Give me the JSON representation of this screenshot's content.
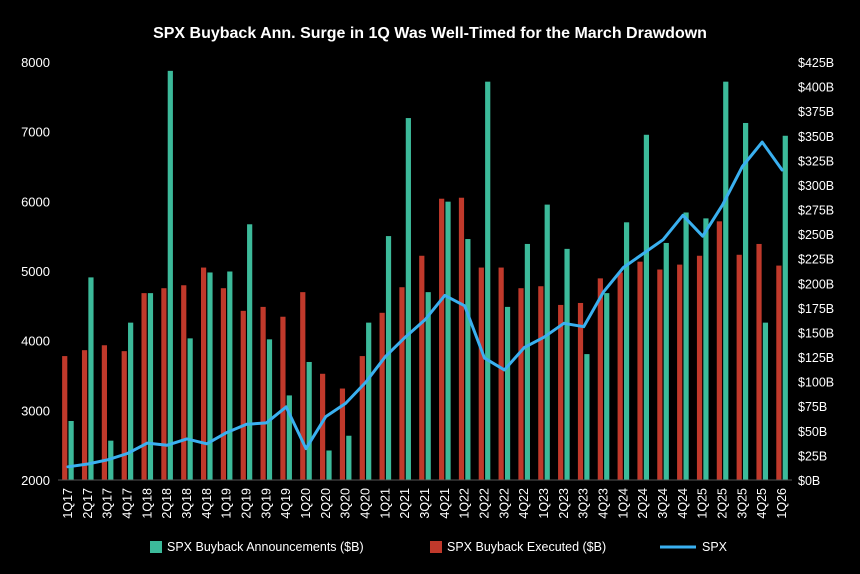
{
  "chart_data": {
    "type": "bar",
    "title": "SPX Buyback Ann. Surge in 1Q Was Well-Timed for the March Drawdown",
    "categories": [
      "1Q17",
      "2Q17",
      "3Q17",
      "4Q17",
      "1Q18",
      "2Q18",
      "3Q18",
      "4Q18",
      "1Q19",
      "2Q19",
      "3Q19",
      "4Q19",
      "1Q20",
      "2Q20",
      "3Q20",
      "4Q20",
      "1Q21",
      "2Q21",
      "3Q21",
      "4Q21",
      "1Q22",
      "2Q22",
      "3Q22",
      "4Q22",
      "1Q23",
      "2Q23",
      "3Q23",
      "4Q23",
      "1Q24",
      "2Q24",
      "3Q24",
      "4Q24",
      "1Q25",
      "2Q25",
      "3Q25",
      "4Q25",
      "1Q26"
    ],
    "y_left": {
      "min": 2000,
      "max": 8000,
      "ticks": [
        "2000",
        "3000",
        "4000",
        "5000",
        "6000",
        "7000",
        "8000"
      ]
    },
    "y_right": {
      "min": 0,
      "max": 425,
      "ticks": [
        "$0B",
        "$25B",
        "$50B",
        "$75B",
        "$100B",
        "$125B",
        "$150B",
        "$175B",
        "$200B",
        "$225B",
        "$250B",
        "$275B",
        "$300B",
        "$325B",
        "$350B",
        "$375B",
        "$400B",
        "$425B"
      ]
    },
    "series": [
      {
        "name": "SPX Buyback Announcements ($B)",
        "axis": "right",
        "color": "#3cba9a",
        "values": [
          60,
          206,
          40,
          160,
          190,
          416,
          144,
          211,
          212,
          260,
          143,
          86,
          120,
          30,
          45,
          160,
          248,
          368,
          191,
          283,
          245,
          405,
          176,
          240,
          280,
          235,
          128,
          190,
          262,
          351,
          241,
          272,
          266,
          405,
          363,
          160,
          350
        ]
      },
      {
        "name": "SPX Buyback Executed ($B)",
        "axis": "right",
        "color": "#c0392b",
        "values": [
          126,
          132,
          137,
          131,
          190,
          195,
          198,
          216,
          195,
          172,
          176,
          166,
          191,
          108,
          93,
          126,
          170,
          196,
          228,
          286,
          287,
          216,
          216,
          195,
          197,
          178,
          180,
          205,
          211,
          222,
          214,
          219,
          228,
          263,
          229,
          240,
          218
        ]
      },
      {
        "name": "SPX",
        "axis": "left",
        "color": "#3ab0f0",
        "type": "line",
        "values": [
          2190,
          2230,
          2290,
          2380,
          2530,
          2500,
          2590,
          2520,
          2680,
          2800,
          2820,
          3050,
          2450,
          2910,
          3100,
          3400,
          3770,
          4050,
          4300,
          4650,
          4500,
          3750,
          3580,
          3900,
          4050,
          4250,
          4200,
          4700,
          5050,
          5250,
          5450,
          5800,
          5500,
          5950,
          6500,
          6850,
          6450
        ]
      }
    ],
    "legend": "bottom",
    "grid": false
  }
}
